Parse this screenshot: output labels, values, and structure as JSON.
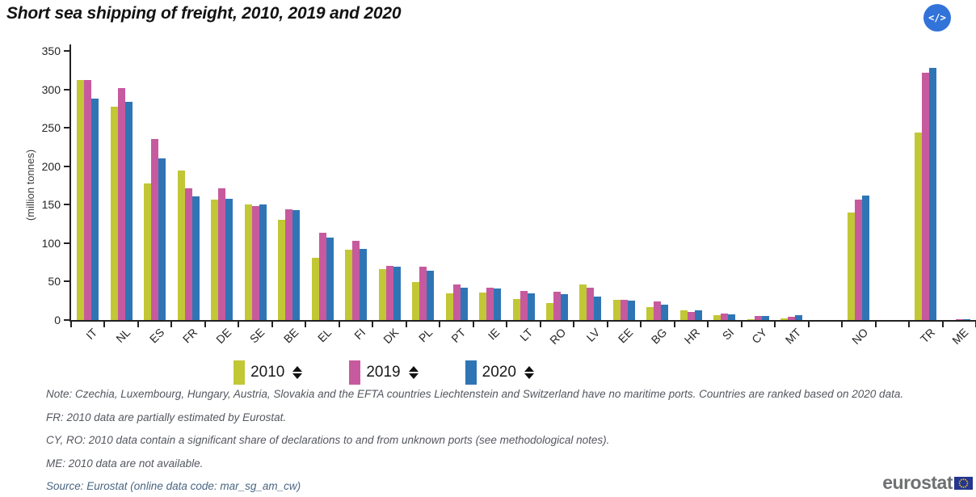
{
  "header": {
    "embed_icon": "</>"
  },
  "chart_data": {
    "type": "bar",
    "title": "Short sea shipping of freight, 2010, 2019 and 2020",
    "ylabel": "(million tonnes)",
    "ylim": [
      0,
      350
    ],
    "yticks": [
      0,
      50,
      100,
      150,
      200,
      250,
      300,
      350
    ],
    "grid": false,
    "legend_position": "bottom",
    "categories": [
      "IT",
      "NL",
      "ES",
      "FR",
      "DE",
      "SE",
      "BE",
      "EL",
      "FI",
      "DK",
      "PL",
      "PT",
      "IE",
      "LT",
      "RO",
      "LV",
      "EE",
      "BG",
      "HR",
      "SI",
      "CY",
      "MT",
      "NO",
      "TR",
      "ME"
    ],
    "series": [
      {
        "name": "2010",
        "color": "#c2c735",
        "values": [
          312,
          277,
          178,
          194,
          157,
          150,
          130,
          81,
          91,
          66,
          49,
          35,
          36,
          27,
          22,
          46,
          26,
          17,
          13,
          6,
          1.5,
          2.5,
          140,
          244,
          null
        ]
      },
      {
        "name": "2019",
        "color": "#c75a9e",
        "values": [
          312,
          302,
          235,
          171,
          171,
          148,
          144,
          114,
          103,
          70,
          69,
          46,
          42,
          38,
          37,
          42,
          26,
          24,
          10,
          8,
          5,
          4,
          157,
          322,
          1
        ]
      },
      {
        "name": "2020",
        "color": "#2f75b5",
        "values": [
          288,
          284,
          210,
          161,
          158,
          150,
          143,
          107,
          93,
          69,
          64,
          42,
          41,
          35,
          34,
          31,
          25,
          20,
          13,
          7,
          5,
          6.5,
          162,
          328,
          1
        ]
      }
    ],
    "layout_hints": {
      "empty_slots_after": [
        "MT",
        "NO"
      ]
    }
  },
  "notes": [
    "Note: Czechia, Luxembourg, Hungary, Austria, Slovakia and the EFTA countries Liechtenstein and Switzerland have no maritime ports. Countries are ranked based on 2020 data.",
    "FR: 2010 data are partially estimated by Eurostat.",
    "CY, RO: 2010 data contain a significant share of declarations to and from unknown ports (see methodological notes).",
    "ME: 2010 data are not available.",
    "Source: Eurostat (online data code: mar_sg_am_cw)"
  ],
  "logo": {
    "text": "eurostat",
    "flag_blue": "#24368f",
    "star_yellow": "#ffcc00"
  }
}
